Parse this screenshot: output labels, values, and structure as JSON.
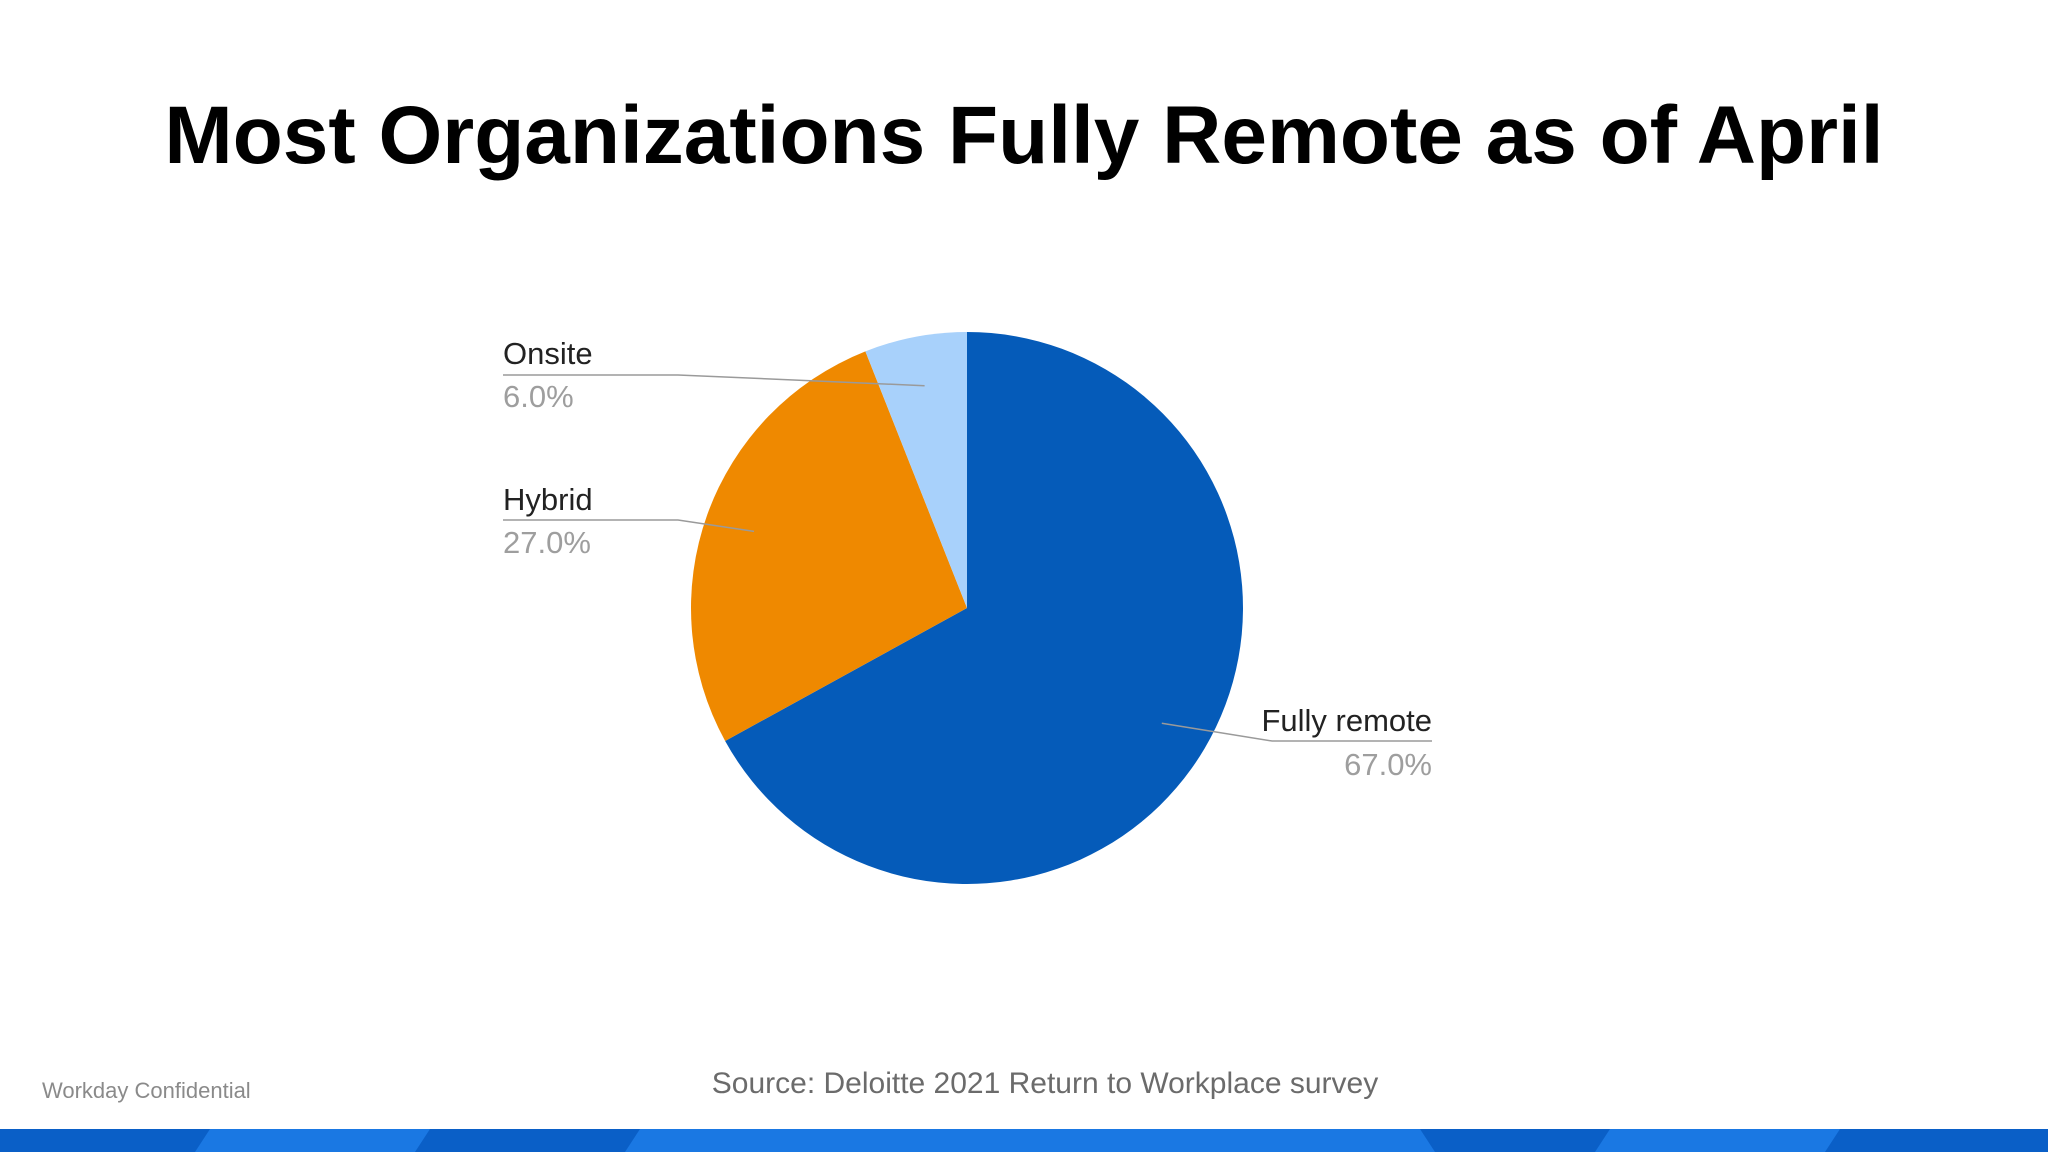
{
  "slide": {
    "title": "Most Organizations Fully Remote as of April",
    "footer_confidential": "Workday Confidential",
    "footer_source": "Source: Deloitte 2021 Return to Workplace survey"
  },
  "colors": {
    "onsite": "#a8d1fb",
    "hybrid": "#ef8900",
    "fully_remote": "#055bb9",
    "band_base": "#0a5fc7",
    "band_light": "#1a78e3"
  },
  "chart_data": {
    "type": "pie",
    "slices": [
      {
        "label": "Fully remote",
        "value": 67.0,
        "value_label": "67.0%",
        "color": "#055bb9"
      },
      {
        "label": "Hybrid",
        "value": 27.0,
        "value_label": "27.0%",
        "color": "#ef8900"
      },
      {
        "label": "Onsite",
        "value": 6.0,
        "value_label": "6.0%",
        "color": "#a8d1fb"
      }
    ],
    "start_angle": "12 o'clock",
    "direction": "clockwise",
    "labels": "outside with leader lines"
  }
}
